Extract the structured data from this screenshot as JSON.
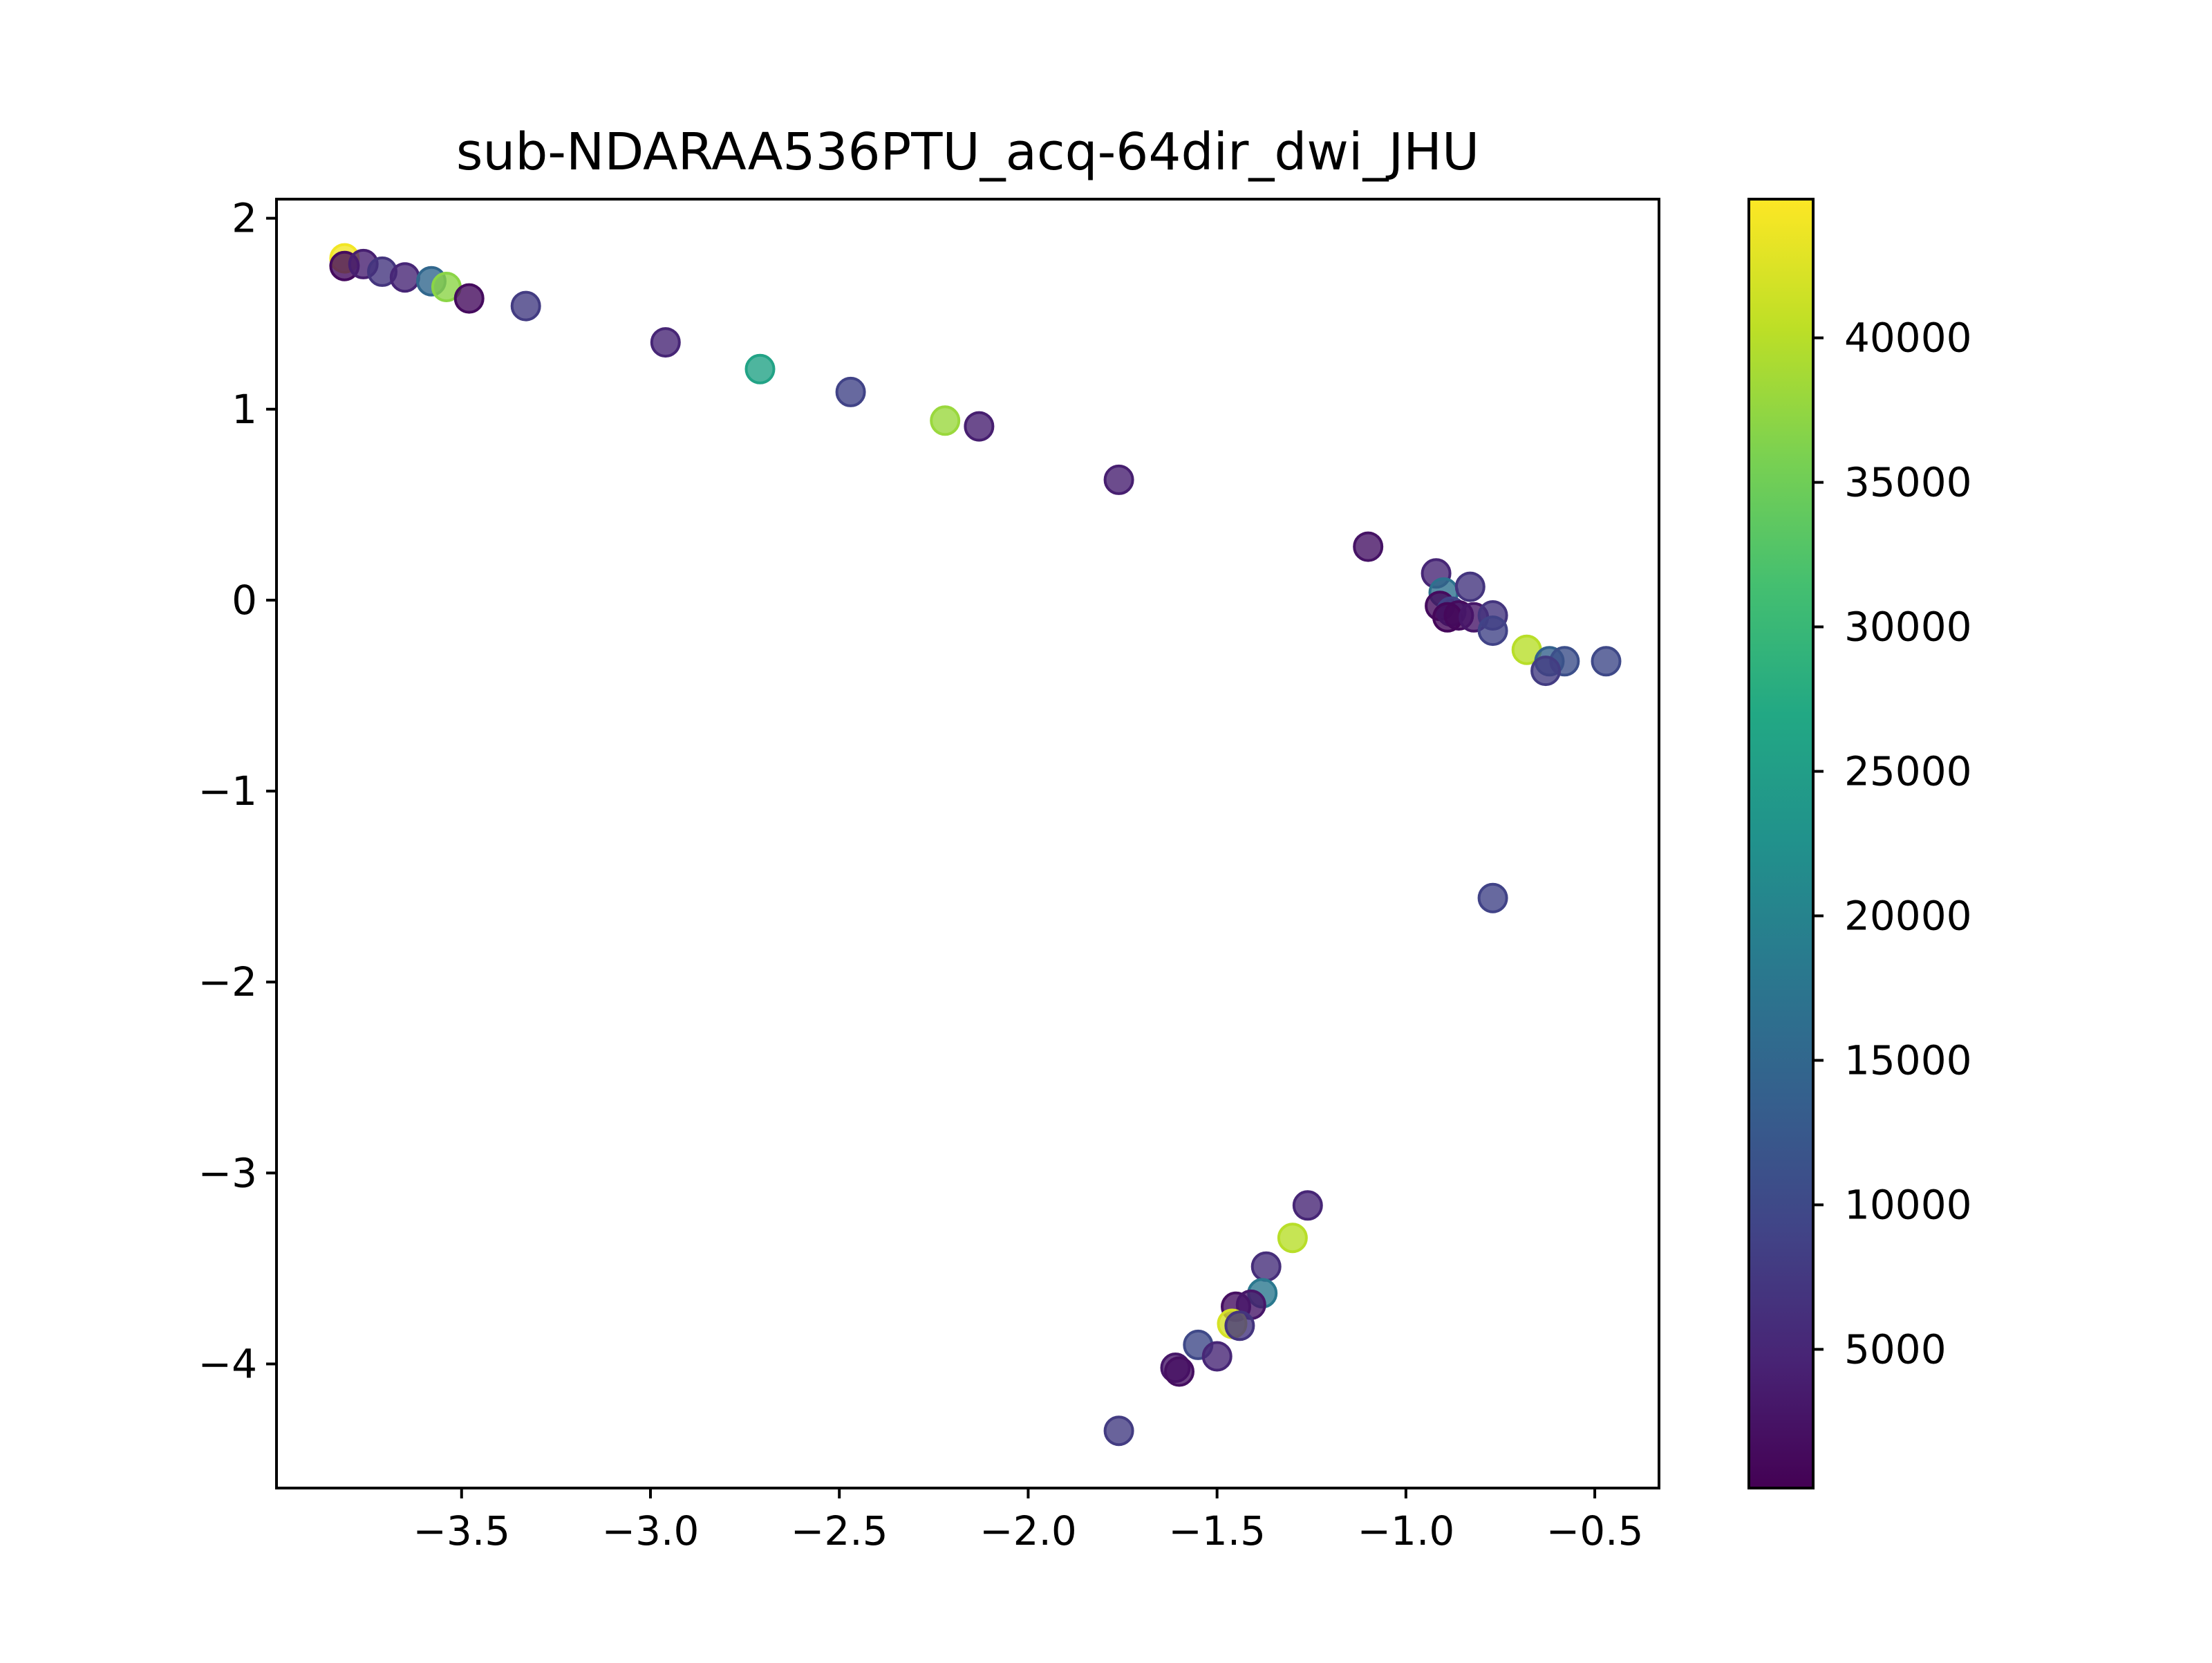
{
  "chart_data": {
    "type": "scatter",
    "title": "sub-NDARAA536PTU_acq-64dir_dwi_JHU",
    "xlabel": "",
    "ylabel": "",
    "xlim": [
      -3.99,
      -0.33
    ],
    "ylim": [
      -4.65,
      2.1
    ],
    "grid": false,
    "x_ticks": [
      -3.5,
      -3.0,
      -2.5,
      -2.0,
      -1.5,
      -1.0,
      -0.5
    ],
    "x_tick_labels": [
      "−3.5",
      "−3.0",
      "−2.5",
      "−2.0",
      "−1.5",
      "−1.0",
      "−0.5"
    ],
    "y_ticks": [
      2,
      1,
      0,
      -1,
      -2,
      -3,
      -4
    ],
    "y_tick_labels": [
      "2",
      "1",
      "0",
      "−1",
      "−2",
      "−3",
      "−4"
    ],
    "colormap": "viridis",
    "colorbar": {
      "range": [
        200,
        44800
      ],
      "ticks": [
        5000,
        10000,
        15000,
        20000,
        25000,
        30000,
        35000,
        40000
      ],
      "tick_labels": [
        "5000",
        "10000",
        "15000",
        "20000",
        "25000",
        "30000",
        "35000",
        "40000"
      ]
    },
    "points": [
      {
        "x": -3.81,
        "y": 1.79,
        "c": 44000
      },
      {
        "x": -3.81,
        "y": 1.75,
        "c": 1500
      },
      {
        "x": -3.76,
        "y": 1.76,
        "c": 4000
      },
      {
        "x": -3.71,
        "y": 1.72,
        "c": 7000
      },
      {
        "x": -3.65,
        "y": 1.69,
        "c": 5000
      },
      {
        "x": -3.58,
        "y": 1.67,
        "c": 15000
      },
      {
        "x": -3.54,
        "y": 1.64,
        "c": 37000
      },
      {
        "x": -3.48,
        "y": 1.58,
        "c": 1500
      },
      {
        "x": -3.33,
        "y": 1.54,
        "c": 8000
      },
      {
        "x": -2.96,
        "y": 1.35,
        "c": 5000
      },
      {
        "x": -2.71,
        "y": 1.21,
        "c": 26000
      },
      {
        "x": -2.47,
        "y": 1.09,
        "c": 9000
      },
      {
        "x": -2.22,
        "y": 0.94,
        "c": 38000
      },
      {
        "x": -2.13,
        "y": 0.91,
        "c": 4000
      },
      {
        "x": -1.76,
        "y": 0.63,
        "c": 4000
      },
      {
        "x": -1.1,
        "y": 0.28,
        "c": 2500
      },
      {
        "x": -0.92,
        "y": 0.14,
        "c": 5000
      },
      {
        "x": -0.9,
        "y": 0.04,
        "c": 17000
      },
      {
        "x": -0.91,
        "y": -0.03,
        "c": 1500
      },
      {
        "x": -0.88,
        "y": -0.06,
        "c": 9000
      },
      {
        "x": -0.86,
        "y": -0.08,
        "c": 1500
      },
      {
        "x": -0.89,
        "y": -0.09,
        "c": 1000
      },
      {
        "x": -0.83,
        "y": 0.07,
        "c": 7000
      },
      {
        "x": -0.82,
        "y": -0.09,
        "c": 3000
      },
      {
        "x": -0.77,
        "y": -0.08,
        "c": 7000
      },
      {
        "x": -0.77,
        "y": -0.16,
        "c": 9000
      },
      {
        "x": -0.68,
        "y": -0.26,
        "c": 40000
      },
      {
        "x": -0.62,
        "y": -0.32,
        "c": 14000
      },
      {
        "x": -0.58,
        "y": -0.32,
        "c": 11000
      },
      {
        "x": -0.63,
        "y": -0.37,
        "c": 8000
      },
      {
        "x": -0.47,
        "y": -0.32,
        "c": 10000
      },
      {
        "x": -0.77,
        "y": -1.56,
        "c": 9000
      },
      {
        "x": -1.26,
        "y": -3.17,
        "c": 5000
      },
      {
        "x": -1.3,
        "y": -3.34,
        "c": 40000
      },
      {
        "x": -1.37,
        "y": -3.49,
        "c": 6000
      },
      {
        "x": -1.38,
        "y": -3.63,
        "c": 18000
      },
      {
        "x": -1.45,
        "y": -3.7,
        "c": 2000
      },
      {
        "x": -1.41,
        "y": -3.69,
        "c": 3000
      },
      {
        "x": -1.46,
        "y": -3.79,
        "c": 42000
      },
      {
        "x": -1.44,
        "y": -3.8,
        "c": 7000
      },
      {
        "x": -1.55,
        "y": -3.9,
        "c": 10000
      },
      {
        "x": -1.5,
        "y": -3.96,
        "c": 5000
      },
      {
        "x": -1.61,
        "y": -4.02,
        "c": 3000
      },
      {
        "x": -1.6,
        "y": -4.04,
        "c": 2000
      },
      {
        "x": -1.76,
        "y": -4.35,
        "c": 8000
      }
    ]
  }
}
